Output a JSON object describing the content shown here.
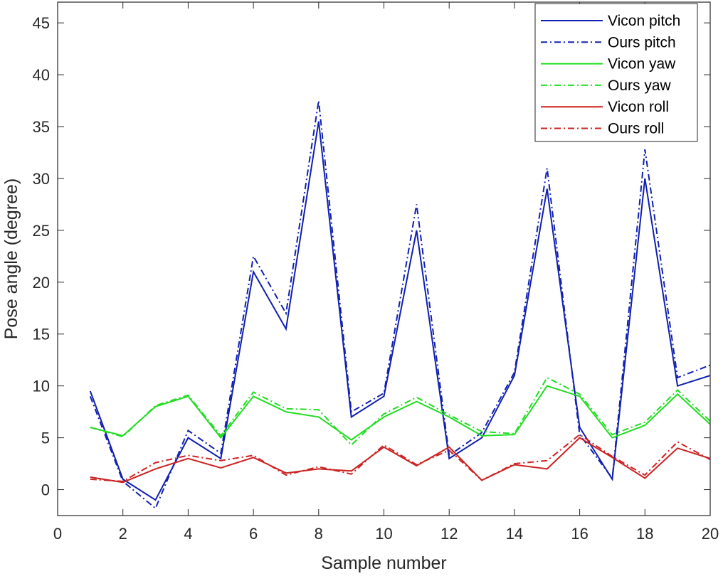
{
  "chart_data": {
    "type": "line",
    "title": "",
    "xlabel": "Sample number",
    "ylabel": "Pose angle (degree)",
    "xlim": [
      0,
      20
    ],
    "ylim": [
      -2.5,
      47
    ],
    "xticks": [
      0,
      2,
      4,
      6,
      8,
      10,
      12,
      14,
      16,
      18,
      20
    ],
    "yticks": [
      0,
      5,
      10,
      15,
      20,
      25,
      30,
      35,
      40,
      45
    ],
    "grid": false,
    "legend_position": "top-right",
    "x": [
      1,
      2,
      3,
      4,
      5,
      6,
      7,
      8,
      9,
      10,
      11,
      12,
      13,
      14,
      15,
      16,
      17,
      18,
      19,
      20
    ],
    "series": [
      {
        "name": "Vicon pitch",
        "color": "#1020b0",
        "style": "solid",
        "values": [
          9.5,
          1.0,
          -1.0,
          5.0,
          3.0,
          21.0,
          15.5,
          35.5,
          7.0,
          9.0,
          25.0,
          3.0,
          5.0,
          11.0,
          29.0,
          6.0,
          1.0,
          30.0,
          10.0,
          11.0
        ]
      },
      {
        "name": "Ours pitch",
        "color": "#1020b0",
        "style": "dashdot",
        "values": [
          9.0,
          0.8,
          -1.8,
          5.7,
          3.5,
          22.5,
          17.0,
          37.5,
          7.5,
          9.3,
          27.5,
          3.3,
          5.5,
          11.3,
          31.0,
          5.3,
          1.1,
          32.8,
          10.8,
          12.0
        ]
      },
      {
        "name": "Vicon yaw",
        "color": "#22dd22",
        "style": "solid",
        "values": [
          6.0,
          5.2,
          8.0,
          9.0,
          5.0,
          9.0,
          7.5,
          7.0,
          4.8,
          7.0,
          8.5,
          7.0,
          5.2,
          5.3,
          10.0,
          9.0,
          5.0,
          6.2,
          9.2,
          6.3
        ]
      },
      {
        "name": "Ours yaw",
        "color": "#22dd22",
        "style": "dashdot",
        "values": [
          6.0,
          5.1,
          8.1,
          9.1,
          5.2,
          9.4,
          7.8,
          7.7,
          4.3,
          7.3,
          8.9,
          7.2,
          5.6,
          5.4,
          10.8,
          9.2,
          5.3,
          6.5,
          9.6,
          6.6
        ]
      },
      {
        "name": "Vicon roll",
        "color": "#cc2222",
        "style": "solid",
        "values": [
          1.2,
          0.7,
          2.0,
          3.0,
          2.1,
          3.1,
          1.6,
          2.0,
          1.8,
          4.1,
          2.3,
          4.1,
          0.9,
          2.4,
          2.0,
          5.0,
          3.1,
          1.1,
          4.0,
          3.0
        ]
      },
      {
        "name": "Ours roll",
        "color": "#cc2222",
        "style": "dashdot",
        "values": [
          1.0,
          0.8,
          2.6,
          3.3,
          2.8,
          3.3,
          1.4,
          2.2,
          1.5,
          4.3,
          2.4,
          3.8,
          0.9,
          2.5,
          2.8,
          5.3,
          3.2,
          1.4,
          4.6,
          2.9
        ]
      }
    ]
  }
}
